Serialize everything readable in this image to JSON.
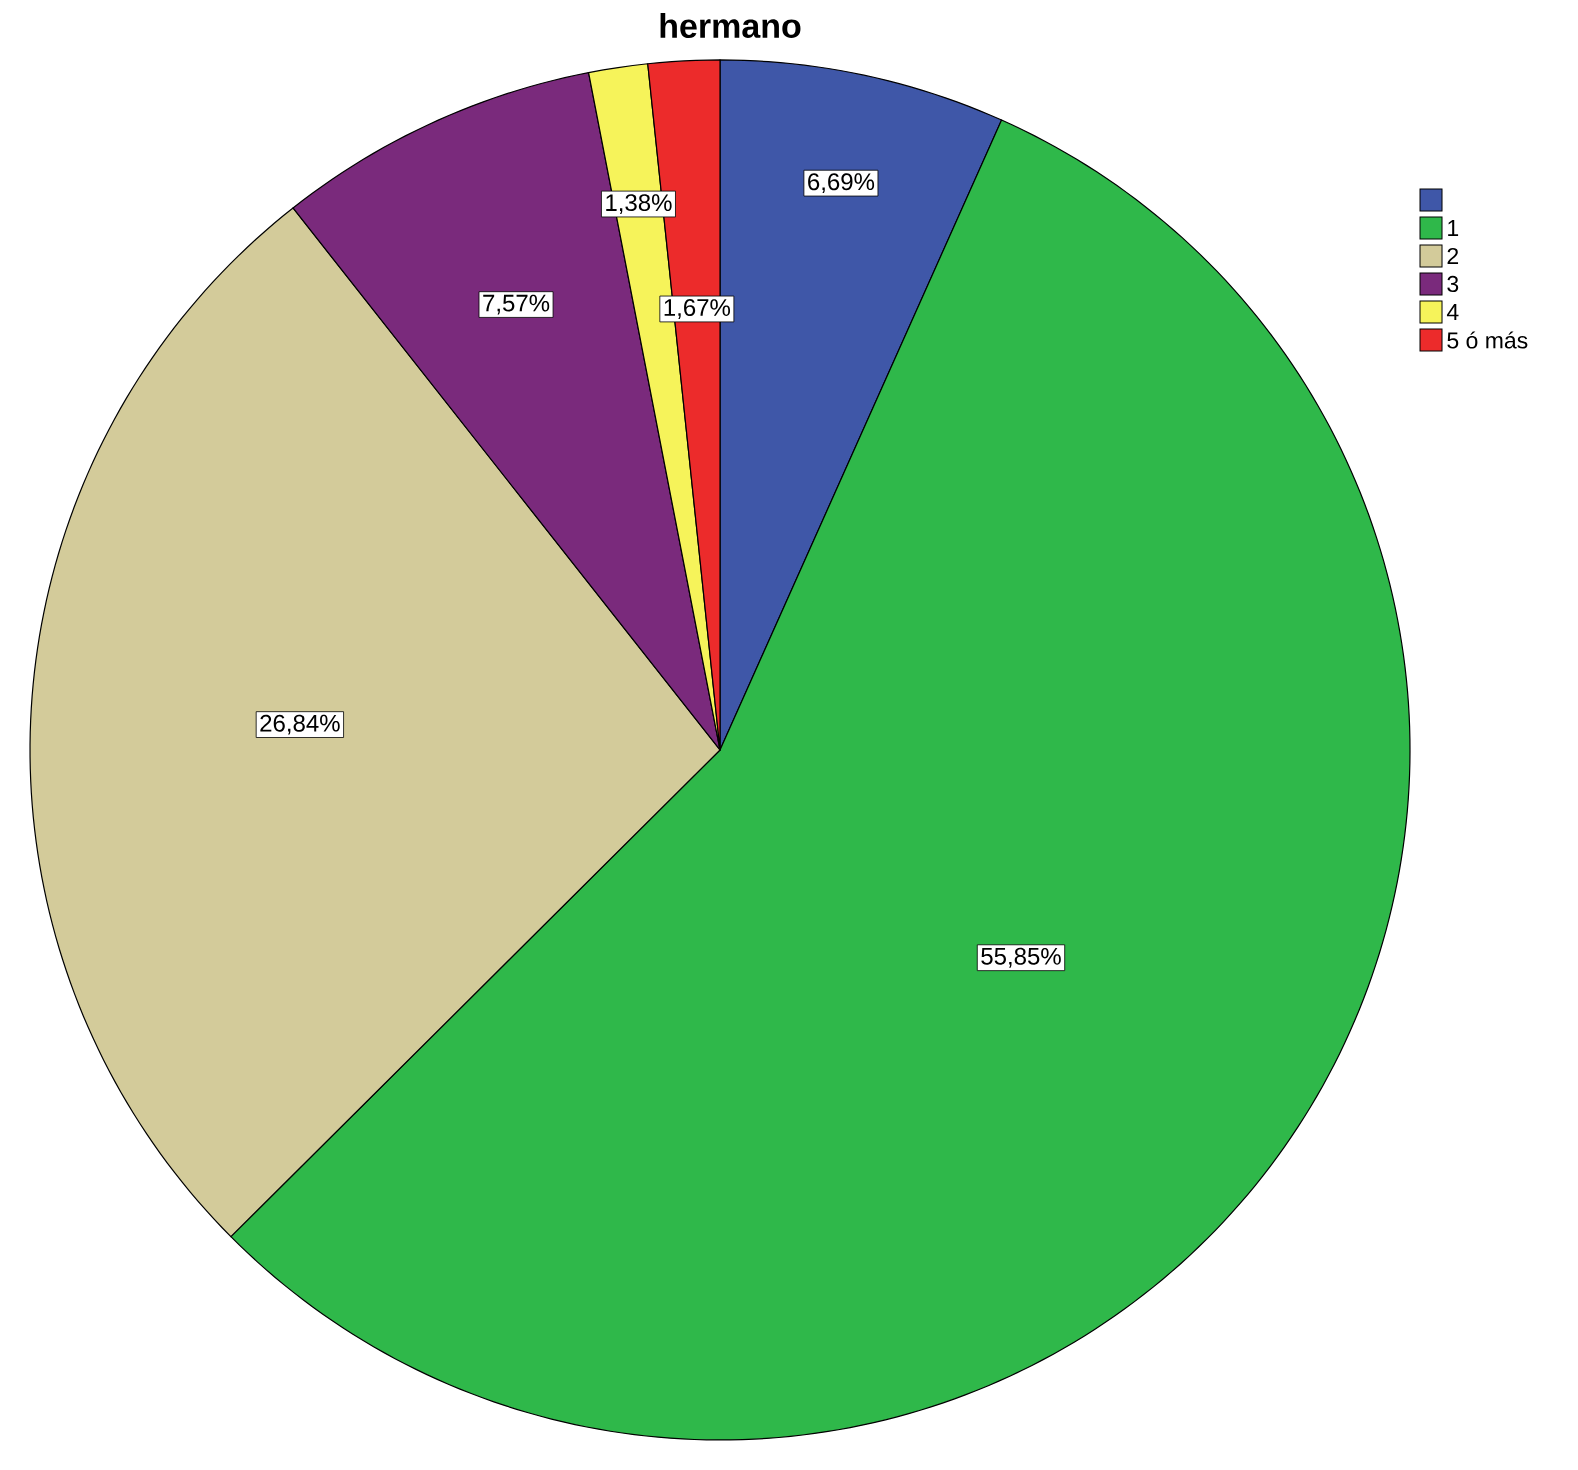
{
  "chart_data": {
    "type": "pie",
    "title": "hermano",
    "categories": [
      null,
      "1",
      "2",
      "3",
      "4",
      "5 ó más"
    ],
    "values": [
      6.69,
      55.85,
      26.84,
      7.57,
      1.38,
      1.67
    ],
    "value_labels": [
      "6,69%",
      "55,85%",
      "26,84%",
      "7,57%",
      "1,38%",
      "1,67%"
    ],
    "colors": [
      "#3f57a8",
      "#2fb84a",
      "#d3cb9a",
      "#7a2a7c",
      "#f6f35a",
      "#ec2b2b"
    ],
    "legend": "top right"
  }
}
